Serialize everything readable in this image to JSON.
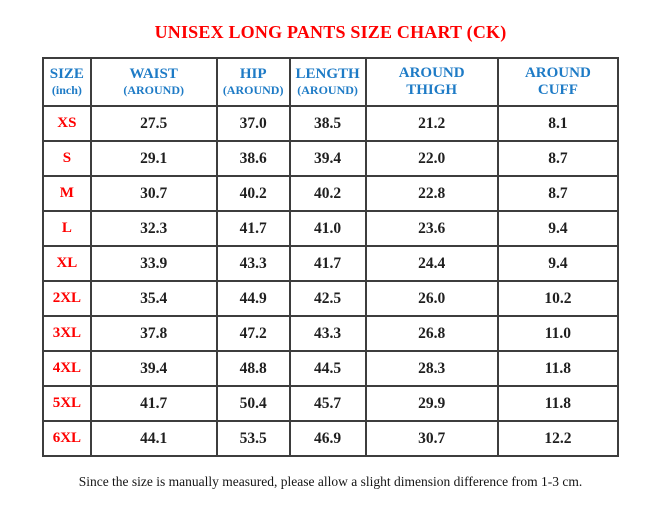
{
  "title": "UNISEX LONG PANTS SIZE CHART (CK)",
  "footer_note": "Since the size is manually measured, please allow a slight dimension difference from 1-3 cm.",
  "colors": {
    "title_red": "#fe0000",
    "size_label_red": "#fe0000",
    "header_blue": "#1e7bc6",
    "value_black": "#1f1f1f",
    "table_border": "#3d3d3d",
    "background": "#ffffff"
  },
  "chart_data": {
    "type": "table",
    "unit": "inch",
    "columns": [
      {
        "key": "size",
        "lines": [
          "SIZE"
        ],
        "sub": "(inch)"
      },
      {
        "key": "waist",
        "lines": [
          "WAIST"
        ],
        "sub": "(AROUND)"
      },
      {
        "key": "hip",
        "lines": [
          "HIP"
        ],
        "sub": "(AROUND)"
      },
      {
        "key": "length",
        "lines": [
          "LENGTH"
        ],
        "sub": "(AROUND)"
      },
      {
        "key": "around-thigh",
        "lines": [
          "AROUND",
          "THIGH"
        ],
        "sub": ""
      },
      {
        "key": "around-cuff",
        "lines": [
          "AROUND",
          "CUFF"
        ],
        "sub": ""
      }
    ],
    "rows": [
      {
        "size": "XS",
        "values": [
          "27.5",
          "37.0",
          "38.5",
          "21.2",
          "8.1"
        ]
      },
      {
        "size": "S",
        "values": [
          "29.1",
          "38.6",
          "39.4",
          "22.0",
          "8.7"
        ]
      },
      {
        "size": "M",
        "values": [
          "30.7",
          "40.2",
          "40.2",
          "22.8",
          "8.7"
        ]
      },
      {
        "size": "L",
        "values": [
          "32.3",
          "41.7",
          "41.0",
          "23.6",
          "9.4"
        ]
      },
      {
        "size": "XL",
        "values": [
          "33.9",
          "43.3",
          "41.7",
          "24.4",
          "9.4"
        ]
      },
      {
        "size": "2XL",
        "values": [
          "35.4",
          "44.9",
          "42.5",
          "26.0",
          "10.2"
        ]
      },
      {
        "size": "3XL",
        "values": [
          "37.8",
          "47.2",
          "43.3",
          "26.8",
          "11.0"
        ]
      },
      {
        "size": "4XL",
        "values": [
          "39.4",
          "48.8",
          "44.5",
          "28.3",
          "11.8"
        ]
      },
      {
        "size": "5XL",
        "values": [
          "41.7",
          "50.4",
          "45.7",
          "29.9",
          "11.8"
        ]
      },
      {
        "size": "6XL",
        "values": [
          "44.1",
          "53.5",
          "46.9",
          "30.7",
          "12.2"
        ]
      }
    ]
  }
}
